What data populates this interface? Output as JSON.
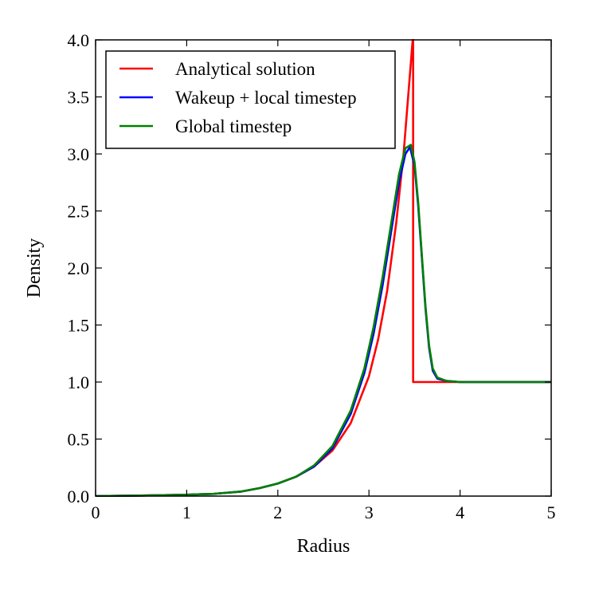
{
  "chart_data": {
    "type": "line",
    "title": "",
    "xlabel": "Radius",
    "ylabel": "Density",
    "xlim": [
      0,
      5
    ],
    "ylim": [
      0,
      4
    ],
    "xticks": [
      0,
      1,
      2,
      3,
      4,
      5
    ],
    "xtick_labels": [
      "0",
      "1",
      "2",
      "3",
      "4",
      "5"
    ],
    "yticks": [
      0,
      0.5,
      1,
      1.5,
      2,
      2.5,
      3,
      3.5,
      4
    ],
    "ytick_labels": [
      "0.0",
      "0.5",
      "1.0",
      "1.5",
      "2.0",
      "2.5",
      "3.0",
      "3.5",
      "4.0"
    ],
    "grid": false,
    "legend_position": "top-left",
    "series": [
      {
        "name": "Analytical solution",
        "color": "#ff0000",
        "x": [
          0,
          0.5,
          1.0,
          1.3,
          1.6,
          1.8,
          2.0,
          2.2,
          2.4,
          2.6,
          2.8,
          3.0,
          3.1,
          3.2,
          3.3,
          3.38,
          3.44,
          3.48,
          3.485,
          3.485,
          5.0
        ],
        "y": [
          0.0,
          0.005,
          0.012,
          0.02,
          0.04,
          0.07,
          0.11,
          0.17,
          0.26,
          0.4,
          0.64,
          1.05,
          1.37,
          1.8,
          2.4,
          3.0,
          3.6,
          4.0,
          4.0,
          1.0,
          1.0
        ]
      },
      {
        "name": "Wakeup + local timestep",
        "color": "#0000ff",
        "x": [
          0,
          0.5,
          1.0,
          1.3,
          1.6,
          1.8,
          2.0,
          2.2,
          2.4,
          2.6,
          2.8,
          2.95,
          3.05,
          3.15,
          3.25,
          3.33,
          3.4,
          3.45,
          3.5,
          3.54,
          3.58,
          3.62,
          3.66,
          3.7,
          3.75,
          3.85,
          4.0,
          5.0
        ],
        "y": [
          0.0,
          0.005,
          0.012,
          0.02,
          0.04,
          0.07,
          0.11,
          0.17,
          0.26,
          0.42,
          0.72,
          1.08,
          1.42,
          1.85,
          2.35,
          2.75,
          3.0,
          3.06,
          2.9,
          2.55,
          2.1,
          1.65,
          1.3,
          1.1,
          1.03,
          1.01,
          1.0,
          1.0
        ]
      },
      {
        "name": "Global timestep",
        "color": "#008000",
        "x": [
          0,
          0.5,
          1.0,
          1.3,
          1.6,
          1.8,
          2.0,
          2.2,
          2.4,
          2.6,
          2.8,
          2.95,
          3.05,
          3.15,
          3.25,
          3.33,
          3.4,
          3.46,
          3.5,
          3.54,
          3.58,
          3.62,
          3.66,
          3.7,
          3.75,
          3.85,
          4.0,
          5.0
        ],
        "y": [
          0.0,
          0.005,
          0.012,
          0.02,
          0.04,
          0.07,
          0.11,
          0.17,
          0.27,
          0.44,
          0.75,
          1.12,
          1.48,
          1.92,
          2.42,
          2.82,
          3.05,
          3.08,
          2.93,
          2.58,
          2.12,
          1.67,
          1.32,
          1.12,
          1.04,
          1.01,
          1.0,
          1.0
        ]
      }
    ]
  }
}
